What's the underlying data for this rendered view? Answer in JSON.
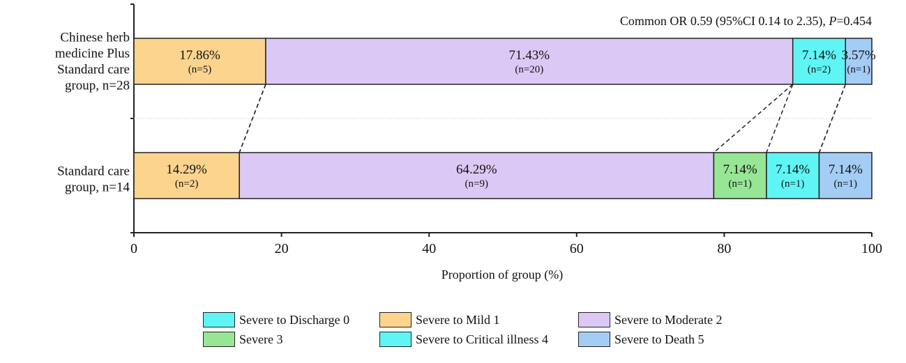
{
  "chart_data": {
    "type": "bar",
    "orientation": "horizontal",
    "stacked": true,
    "annotation": {
      "prefix": "Common OR 0.59 (95%CI 0.14 to 2.35), ",
      "p_symbol": "P",
      "p_value": "=0.454"
    },
    "xlabel": "Proportion of group (%)",
    "xlim": [
      0,
      100
    ],
    "xticks": [
      "0",
      "20",
      "40",
      "60",
      "80",
      "100"
    ],
    "groups": [
      {
        "label_lines": [
          "Chinese herb",
          "medicine Plus",
          "Standard care",
          "group, n=28"
        ],
        "segments": [
          {
            "category": "Severe to Mild 1",
            "value": 17.86,
            "pct_label": "17.86%",
            "n_label": "(n=5)"
          },
          {
            "category": "Severe to Moderate 2",
            "value": 71.43,
            "pct_label": "71.43%",
            "n_label": "(n=20)"
          },
          {
            "category": "Severe to Critical illness 4",
            "value": 7.14,
            "pct_label": "7.14%",
            "n_label": "(n=2)"
          },
          {
            "category": "Severe to Death 5",
            "value": 3.57,
            "pct_label": "3.57%",
            "n_label": "(n=1)"
          }
        ]
      },
      {
        "label_lines": [
          "Standard care",
          "group, n=14"
        ],
        "segments": [
          {
            "category": "Severe to Mild 1",
            "value": 14.29,
            "pct_label": "14.29%",
            "n_label": "(n=2)"
          },
          {
            "category": "Severe to Moderate 2",
            "value": 64.29,
            "pct_label": "64.29%",
            "n_label": "(n=9)"
          },
          {
            "category": "Severe 3",
            "value": 7.14,
            "pct_label": "7.14%",
            "n_label": "(n=1)"
          },
          {
            "category": "Severe to Critical illness 4",
            "value": 7.14,
            "pct_label": "7.14%",
            "n_label": "(n=1)"
          },
          {
            "category": "Severe to Death 5",
            "value": 7.14,
            "pct_label": "7.14%",
            "n_label": "(n=1)"
          }
        ]
      }
    ],
    "legend": [
      {
        "label": "Severe to Discharge 0",
        "color": "#5ff5f5"
      },
      {
        "label": "Severe to Mild 1",
        "color": "#fcd48e"
      },
      {
        "label": "Severe to Moderate 2",
        "color": "#dcc8f5"
      },
      {
        "label": "Severe 3",
        "color": "#96e696"
      },
      {
        "label": "Severe to Critical illness 4",
        "color": "#5ff5f5"
      },
      {
        "label": "Severe to Death 5",
        "color": "#a4cdf5"
      }
    ],
    "legend_position": "bottom"
  }
}
